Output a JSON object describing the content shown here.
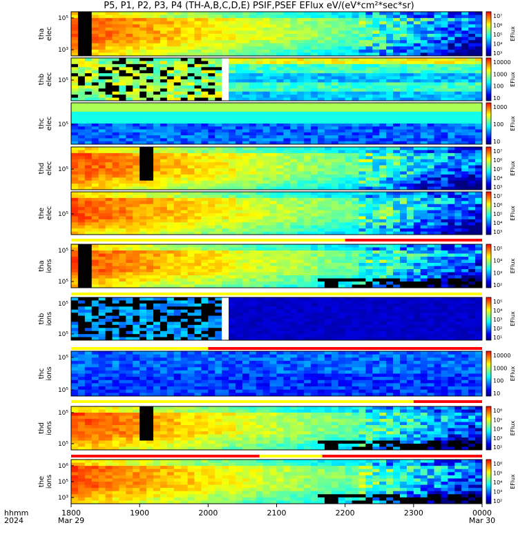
{
  "title": "P5, P1, P2, P3, P4 (TH-A,B,C,D,E) PSIF,PSEF EFlux eV/(eV*cm²*sec*sr)",
  "colorbar_label": "EFlux",
  "colors": {
    "fill": [
      "#000080",
      "#0000ff",
      "#0080ff",
      "#00ffff",
      "#80ff80",
      "#ffff00",
      "#ff8000",
      "#ff0000"
    ],
    "status_good": "#ffff00",
    "status_bad": "#ff0000",
    "no_data": "#000000",
    "gap": "#ffffff"
  },
  "chart_data": {
    "type": "heatmap",
    "x_axis": {
      "header": [
        "hhmm",
        "2024"
      ],
      "ticks": [
        "1800",
        "1900",
        "2000",
        "2100",
        "2200",
        "2300",
        "0000"
      ],
      "date_ticks": [
        {
          "at": "1800",
          "label": "Mar 29"
        },
        {
          "at": "0000",
          "label": "Mar 30"
        }
      ]
    },
    "panels": [
      {
        "probe": "tha",
        "species": "elec",
        "yticks": [
          "10⁵",
          "10³"
        ],
        "cbar_ticks": [
          "10⁷",
          "10⁶",
          "10⁵",
          "10⁴",
          "10³"
        ],
        "status_bar": null
      },
      {
        "probe": "thb",
        "species": "elec",
        "yticks": [
          "10⁵"
        ],
        "cbar_ticks": [
          "10000",
          "1000",
          "100",
          "10"
        ],
        "status_bar": null
      },
      {
        "probe": "thc",
        "species": "elec",
        "yticks": [
          "10⁵"
        ],
        "cbar_ticks": [
          "1000",
          "100",
          "10"
        ],
        "status_bar": null
      },
      {
        "probe": "thd",
        "species": "elec",
        "yticks": [
          "10⁵"
        ],
        "cbar_ticks": [
          "10⁷",
          "10⁶",
          "10⁵",
          "10⁴",
          "10³"
        ],
        "status_bar": null
      },
      {
        "probe": "the",
        "species": "elec",
        "yticks": [
          "10⁵"
        ],
        "cbar_ticks": [
          "10⁷",
          "10⁶",
          "10⁵",
          "10⁴",
          "10³"
        ],
        "status_bar": [
          {
            "from": "1800",
            "to": "2200",
            "flag": "good"
          },
          {
            "from": "2200",
            "to": "0000",
            "flag": "bad"
          }
        ]
      },
      {
        "probe": "tha",
        "species": "ions",
        "yticks": [
          "10⁵",
          "10⁵"
        ],
        "cbar_ticks": [
          "10⁵",
          "10⁴",
          "10³",
          "10²"
        ],
        "status_bar": [
          {
            "from": "1800",
            "to": "0000",
            "flag": "good"
          }
        ]
      },
      {
        "probe": "thb",
        "species": "ions",
        "yticks": [
          "10⁵",
          "10⁵"
        ],
        "cbar_ticks": [
          "10⁵",
          "10⁴",
          "10³",
          "10²",
          "10¹"
        ],
        "status_bar": [
          {
            "from": "1800",
            "to": "2000",
            "flag": "good"
          },
          {
            "from": "2000",
            "to": "0000",
            "flag": "bad"
          }
        ]
      },
      {
        "probe": "thc",
        "species": "ions",
        "yticks": [
          "10⁵",
          "10⁵"
        ],
        "cbar_ticks": [
          "10000",
          "1000",
          "100",
          "10"
        ],
        "status_bar": [
          {
            "from": "1800",
            "to": "2300",
            "flag": "good"
          },
          {
            "from": "2300",
            "to": "0000",
            "flag": "bad"
          }
        ]
      },
      {
        "probe": "thd",
        "species": "ions",
        "yticks": [
          "10⁵",
          "10⁵"
        ],
        "cbar_ticks": [
          "10⁶",
          "10⁵",
          "10⁴",
          "10³",
          "10²"
        ],
        "status_bar": [
          {
            "from": "1800",
            "to": "2045",
            "flag": "bad"
          },
          {
            "from": "2045",
            "to": "2140",
            "flag": "good"
          },
          {
            "from": "2140",
            "to": "0000",
            "flag": "bad"
          }
        ]
      },
      {
        "probe": "the",
        "species": "ions",
        "yticks": [
          "10⁶",
          "10⁵",
          "10³"
        ],
        "cbar_ticks": [
          "10⁶",
          "10⁵",
          "10⁴",
          "10³",
          "10²"
        ],
        "status_bar": null
      }
    ]
  }
}
